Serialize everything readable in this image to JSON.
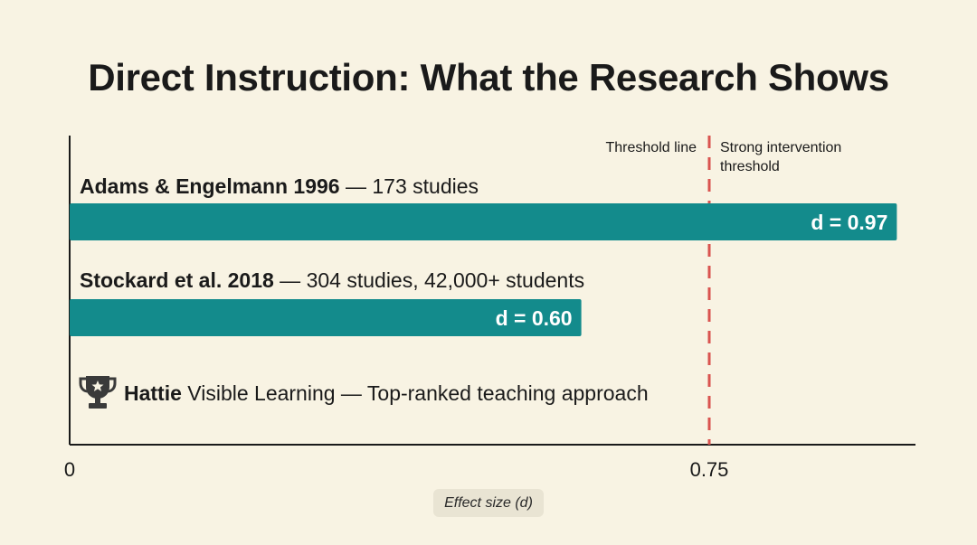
{
  "chart_data": {
    "type": "bar",
    "orientation": "horizontal",
    "title": "Direct Instruction: What the Research Shows",
    "xlabel": "Effect size (d)",
    "ylabel": "",
    "xlim": [
      0,
      0.75
    ],
    "x_ticks": [
      "0",
      "0.75"
    ],
    "grid": false,
    "bar_color": "#138b8c",
    "threshold_color": "#d9534f",
    "series": [
      {
        "id": "adams",
        "name_bold": "Adams & Engelmann 1996",
        "name_rest": " — 173 studies",
        "value": 0.97,
        "value_label": "d = 0.97"
      },
      {
        "id": "stockard",
        "name_bold": "Stockard et al. 2018",
        "name_rest": " — 304 studies, 42,000+ students",
        "value": 0.6,
        "value_label": "d = 0.60"
      }
    ],
    "note": {
      "bold": "Hattie",
      "rest": " Visible Learning — Top-ranked teaching approach",
      "icon": "trophy-icon"
    },
    "threshold": {
      "value": 0.75,
      "label_left": "Threshold line",
      "label_right_lines": [
        "Strong intervention",
        "threshold"
      ]
    }
  }
}
